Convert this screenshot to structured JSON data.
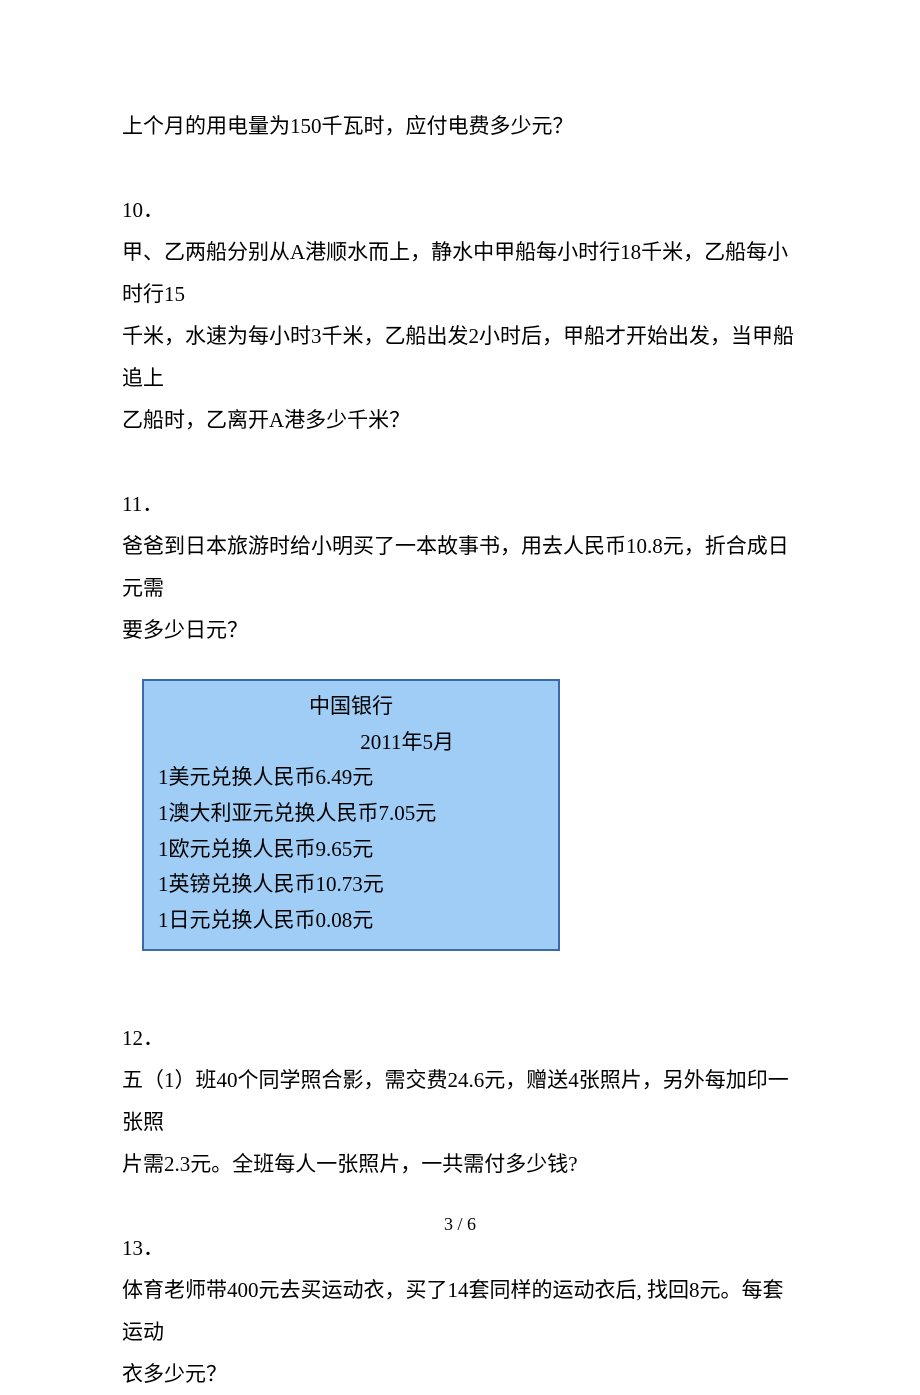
{
  "q9_tail": "上个月的用电量为150千瓦时，应付电费多少元？",
  "q10": {
    "num": "10．",
    "lines": [
      "甲、乙两船分别从A港顺水而上，静水中甲船每小时行18千米，乙船每小时行15",
      "千米，水速为每小时3千米，乙船出发2小时后，甲船才开始出发，当甲船追上",
      "乙船时，乙离开A港多少千米？"
    ]
  },
  "q11": {
    "num": "11．",
    "lines": [
      "爸爸到日本旅游时给小明买了一本故事书，用去人民币10.8元，折合成日元需",
      "要多少日元？"
    ]
  },
  "rate_table": {
    "title": "中国银行",
    "date": "2011年5月",
    "rows": [
      "1美元兑换人民币6.49元",
      "1澳大利亚元兑换人民币7.05元",
      "1欧元兑换人民币9.65元",
      "1英镑兑换人民币10.73元",
      "1日元兑换人民币0.08元"
    ],
    "border_color": "#3a6aa8",
    "background_color": "#9fcdf5",
    "text_color": "#000000"
  },
  "q12": {
    "num": "12．",
    "lines": [
      "五（1）班40个同学照合影，需交费24.6元，赠送4张照片，另外每加印一张照",
      "片需2.3元。全班每人一张照片，一共需付多少钱?"
    ]
  },
  "q13": {
    "num": "13．",
    "lines": [
      "体育老师带400元去买运动衣，买了14套同样的运动衣后, 找回8元。每套运动",
      "衣多少元？"
    ]
  },
  "footer": "3 / 6"
}
